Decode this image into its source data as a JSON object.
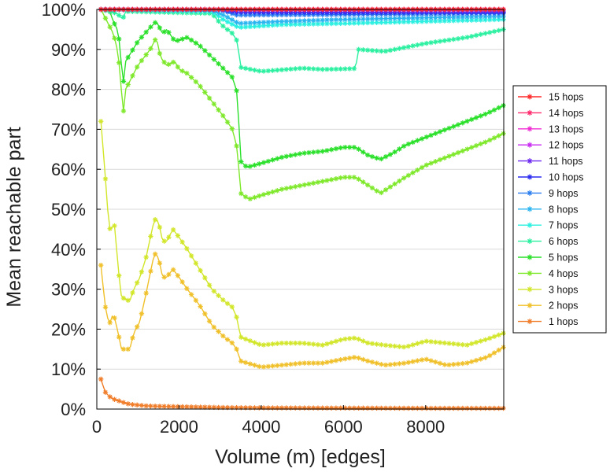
{
  "chart_data": {
    "type": "line",
    "title": "",
    "xlabel": "Volume (m) [edges]",
    "ylabel": "Mean reachable part",
    "xlim": [
      0,
      9900
    ],
    "ylim": [
      0,
      100
    ],
    "x_ticks": [
      0,
      2000,
      4000,
      6000,
      8000
    ],
    "x_tick_labels": [
      "0",
      "2000",
      "4000",
      "6000",
      "8000"
    ],
    "y_ticks": [
      0,
      10,
      20,
      30,
      40,
      50,
      60,
      70,
      80,
      90,
      100
    ],
    "y_tick_labels": [
      "0%",
      "10%",
      "20%",
      "30%",
      "40%",
      "50%",
      "60%",
      "70%",
      "80%",
      "90%",
      "100%"
    ],
    "grid": "horizontal",
    "legend_position": "right",
    "marker": "asterisk",
    "series": [
      {
        "name": "15 hops",
        "color": "#ff2a2a",
        "points": [
          [
            100,
            100
          ],
          [
            9900,
            100
          ]
        ]
      },
      {
        "name": "14 hops",
        "color": "#ff2a6e",
        "points": [
          [
            100,
            100
          ],
          [
            9900,
            100
          ]
        ]
      },
      {
        "name": "13 hops",
        "color": "#f02ad2",
        "points": [
          [
            100,
            100
          ],
          [
            9900,
            100
          ]
        ]
      },
      {
        "name": "12 hops",
        "color": "#c82af0",
        "points": [
          [
            100,
            100
          ],
          [
            9900,
            100
          ]
        ]
      },
      {
        "name": "11 hops",
        "color": "#6e2af0",
        "points": [
          [
            100,
            100
          ],
          [
            3000,
            100
          ],
          [
            3400,
            99.8
          ],
          [
            9900,
            99.6
          ]
        ]
      },
      {
        "name": "10 hops",
        "color": "#2a2af0",
        "points": [
          [
            100,
            100
          ],
          [
            3000,
            100
          ],
          [
            3400,
            99.3
          ],
          [
            6000,
            99.2
          ],
          [
            9900,
            99.3
          ]
        ]
      },
      {
        "name": "9 hops",
        "color": "#2a7ef0",
        "points": [
          [
            100,
            100
          ],
          [
            3000,
            99.9
          ],
          [
            3400,
            98.6
          ],
          [
            6000,
            98.7
          ],
          [
            9900,
            99.0
          ]
        ]
      },
      {
        "name": "8 hops",
        "color": "#2ab4f0",
        "points": [
          [
            100,
            100
          ],
          [
            2800,
            99.8
          ],
          [
            3100,
            98.5
          ],
          [
            3450,
            96.5
          ],
          [
            4500,
            97.0
          ],
          [
            6000,
            97.5
          ],
          [
            9900,
            98.3
          ]
        ]
      },
      {
        "name": "7 hops",
        "color": "#2af0e0",
        "points": [
          [
            100,
            100
          ],
          [
            2800,
            99.5
          ],
          [
            3100,
            97.3
          ],
          [
            3450,
            95.5
          ],
          [
            4500,
            96.2
          ],
          [
            6000,
            96.5
          ],
          [
            9900,
            97.5
          ]
        ]
      },
      {
        "name": "6 hops",
        "color": "#2af0a0",
        "points": [
          [
            100,
            100
          ],
          [
            500,
            99
          ],
          [
            630,
            97.5
          ],
          [
            700,
            99.5
          ],
          [
            2800,
            99
          ],
          [
            3050,
            96
          ],
          [
            3300,
            94
          ],
          [
            3420,
            92
          ],
          [
            3500,
            85.5
          ],
          [
            4000,
            84.5
          ],
          [
            5000,
            85.3
          ],
          [
            5500,
            85
          ],
          [
            6300,
            85.2
          ],
          [
            6350,
            90
          ],
          [
            7000,
            89.5
          ],
          [
            8000,
            91.5
          ],
          [
            9000,
            93
          ],
          [
            9900,
            95
          ]
        ]
      },
      {
        "name": "5 hops",
        "color": "#2ae02a",
        "points": [
          [
            100,
            100
          ],
          [
            300,
            100
          ],
          [
            400,
            97
          ],
          [
            500,
            95
          ],
          [
            550,
            92
          ],
          [
            640,
            81
          ],
          [
            700,
            87
          ],
          [
            1000,
            92
          ],
          [
            1300,
            95.5
          ],
          [
            1450,
            97
          ],
          [
            1600,
            94
          ],
          [
            1700,
            95
          ],
          [
            1900,
            92
          ],
          [
            2200,
            93
          ],
          [
            2500,
            91
          ],
          [
            2800,
            88
          ],
          [
            3100,
            85
          ],
          [
            3300,
            83
          ],
          [
            3420,
            79
          ],
          [
            3500,
            62
          ],
          [
            3650,
            60.5
          ],
          [
            4000,
            61.5
          ],
          [
            4500,
            63
          ],
          [
            5000,
            64
          ],
          [
            5500,
            64.5
          ],
          [
            6000,
            65.5
          ],
          [
            6300,
            65.5
          ],
          [
            6600,
            63.5
          ],
          [
            6900,
            62.5
          ],
          [
            7200,
            64
          ],
          [
            7500,
            66
          ],
          [
            8000,
            68
          ],
          [
            8500,
            70
          ],
          [
            9000,
            72
          ],
          [
            9500,
            74
          ],
          [
            9900,
            76
          ]
        ]
      },
      {
        "name": "4 hops",
        "color": "#7ee82a",
        "points": [
          [
            100,
            100
          ],
          [
            250,
            97
          ],
          [
            400,
            94
          ],
          [
            500,
            90
          ],
          [
            560,
            85
          ],
          [
            640,
            73.5
          ],
          [
            700,
            80
          ],
          [
            1000,
            86
          ],
          [
            1300,
            90
          ],
          [
            1450,
            93
          ],
          [
            1550,
            88
          ],
          [
            1700,
            86
          ],
          [
            1900,
            87
          ],
          [
            2000,
            85
          ],
          [
            2200,
            84
          ],
          [
            2500,
            81
          ],
          [
            2800,
            77
          ],
          [
            3100,
            73
          ],
          [
            3300,
            70
          ],
          [
            3420,
            65
          ],
          [
            3500,
            54
          ],
          [
            3700,
            52.5
          ],
          [
            4000,
            53.5
          ],
          [
            4500,
            55
          ],
          [
            5000,
            56
          ],
          [
            5500,
            57
          ],
          [
            6000,
            58
          ],
          [
            6300,
            58
          ],
          [
            6600,
            56
          ],
          [
            6900,
            54
          ],
          [
            7200,
            56
          ],
          [
            7500,
            58
          ],
          [
            8000,
            61
          ],
          [
            8500,
            63
          ],
          [
            9000,
            65
          ],
          [
            9500,
            67
          ],
          [
            9900,
            69
          ]
        ]
      },
      {
        "name": "3 hops",
        "color": "#d2e62a",
        "points": [
          [
            100,
            72
          ],
          [
            200,
            59
          ],
          [
            300,
            45
          ],
          [
            450,
            46
          ],
          [
            500,
            37
          ],
          [
            600,
            28
          ],
          [
            800,
            27
          ],
          [
            900,
            30
          ],
          [
            1050,
            33
          ],
          [
            1200,
            38
          ],
          [
            1400,
            47.5
          ],
          [
            1500,
            47
          ],
          [
            1600,
            42
          ],
          [
            1700,
            42
          ],
          [
            1850,
            45
          ],
          [
            2000,
            43
          ],
          [
            2200,
            40
          ],
          [
            2500,
            35
          ],
          [
            2800,
            30
          ],
          [
            3100,
            27
          ],
          [
            3300,
            25.5
          ],
          [
            3400,
            23
          ],
          [
            3500,
            18
          ],
          [
            4000,
            16
          ],
          [
            4500,
            16.5
          ],
          [
            5000,
            16.5
          ],
          [
            5500,
            16
          ],
          [
            6000,
            17.5
          ],
          [
            6300,
            17.8
          ],
          [
            6600,
            16.5
          ],
          [
            7000,
            16
          ],
          [
            7500,
            15.5
          ],
          [
            8000,
            17
          ],
          [
            8500,
            16.5
          ],
          [
            9000,
            16
          ],
          [
            9500,
            17.5
          ],
          [
            9900,
            19
          ]
        ]
      },
      {
        "name": "2 hops",
        "color": "#f0c02a",
        "points": [
          [
            100,
            36
          ],
          [
            200,
            26
          ],
          [
            300,
            21
          ],
          [
            400,
            24
          ],
          [
            500,
            20
          ],
          [
            600,
            15
          ],
          [
            800,
            15
          ],
          [
            900,
            19
          ],
          [
            1050,
            22
          ],
          [
            1200,
            29
          ],
          [
            1400,
            39
          ],
          [
            1500,
            38
          ],
          [
            1600,
            33
          ],
          [
            1700,
            33
          ],
          [
            1850,
            35
          ],
          [
            2000,
            33
          ],
          [
            2200,
            30
          ],
          [
            2500,
            26
          ],
          [
            2800,
            21
          ],
          [
            3100,
            18
          ],
          [
            3300,
            16.5
          ],
          [
            3400,
            15
          ],
          [
            3500,
            12
          ],
          [
            4000,
            10.5
          ],
          [
            4500,
            11
          ],
          [
            5000,
            11.5
          ],
          [
            5500,
            11.5
          ],
          [
            6000,
            12.5
          ],
          [
            6300,
            13
          ],
          [
            6600,
            12
          ],
          [
            7000,
            11
          ],
          [
            7500,
            11.5
          ],
          [
            8000,
            12.5
          ],
          [
            8500,
            11
          ],
          [
            9000,
            11.5
          ],
          [
            9500,
            13
          ],
          [
            9900,
            15.5
          ]
        ]
      },
      {
        "name": "1 hops",
        "color": "#f07d2a",
        "points": [
          [
            100,
            7.5
          ],
          [
            200,
            4.3
          ],
          [
            300,
            3.2
          ],
          [
            400,
            2.5
          ],
          [
            500,
            2.2
          ],
          [
            600,
            1.8
          ],
          [
            700,
            1.5
          ],
          [
            800,
            1.2
          ],
          [
            1000,
            1.0
          ],
          [
            1200,
            0.8
          ],
          [
            1500,
            0.7
          ],
          [
            2000,
            0.6
          ],
          [
            3000,
            0.4
          ],
          [
            4000,
            0.3
          ],
          [
            6000,
            0.25
          ],
          [
            8000,
            0.2
          ],
          [
            9900,
            0.2
          ]
        ]
      }
    ]
  }
}
